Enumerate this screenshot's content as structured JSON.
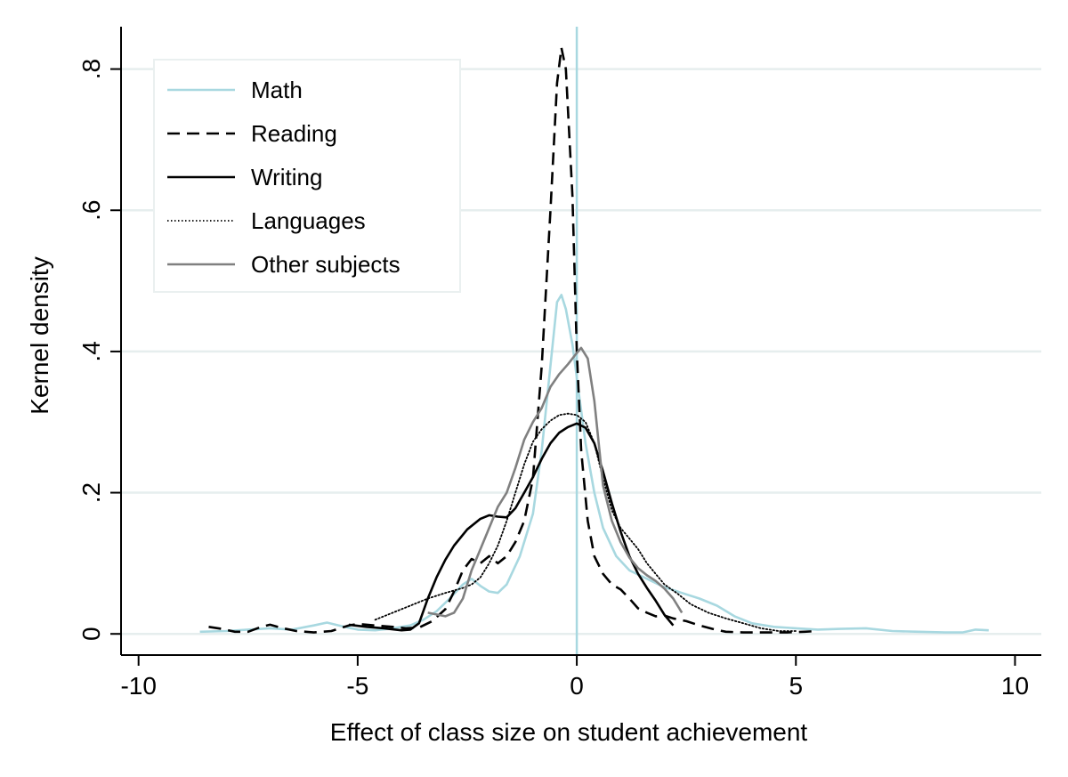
{
  "chart_data": {
    "type": "line",
    "title": "",
    "xlabel": "Effect of class size on student achievement",
    "ylabel": "Kernel density",
    "xlim": [
      -10.4,
      10.6
    ],
    "ylim": [
      -0.03,
      0.86
    ],
    "xticks": [
      {
        "value": -10,
        "label": "-10"
      },
      {
        "value": -5,
        "label": "-5"
      },
      {
        "value": 0,
        "label": "0"
      },
      {
        "value": 5,
        "label": "5"
      },
      {
        "value": 10,
        "label": "10"
      }
    ],
    "yticks": [
      {
        "value": 0,
        "label": "0"
      },
      {
        "value": 0.2,
        "label": ".2"
      },
      {
        "value": 0.4,
        "label": ".4"
      },
      {
        "value": 0.6,
        "label": ".6"
      },
      {
        "value": 0.8,
        "label": ".8"
      }
    ],
    "grid": "horizontal",
    "grid_color": "#e6eeee",
    "reference_line": {
      "x": 0,
      "color": "#a8d8e0"
    },
    "legend": {
      "position": "top-left"
    },
    "series": [
      {
        "name": "Math",
        "color": "#a8d8e0",
        "dash": "solid",
        "points": [
          [
            -8.6,
            0.003
          ],
          [
            -8.0,
            0.004
          ],
          [
            -7.5,
            0.006
          ],
          [
            -7.0,
            0.008
          ],
          [
            -6.5,
            0.006
          ],
          [
            -6.0,
            0.012
          ],
          [
            -5.7,
            0.016
          ],
          [
            -5.3,
            0.01
          ],
          [
            -5.0,
            0.006
          ],
          [
            -4.6,
            0.005
          ],
          [
            -4.2,
            0.008
          ],
          [
            -3.8,
            0.012
          ],
          [
            -3.5,
            0.02
          ],
          [
            -3.2,
            0.032
          ],
          [
            -2.9,
            0.05
          ],
          [
            -2.6,
            0.07
          ],
          [
            -2.4,
            0.078
          ],
          [
            -2.2,
            0.068
          ],
          [
            -2.0,
            0.06
          ],
          [
            -1.8,
            0.058
          ],
          [
            -1.6,
            0.07
          ],
          [
            -1.3,
            0.11
          ],
          [
            -1.0,
            0.17
          ],
          [
            -0.8,
            0.26
          ],
          [
            -0.6,
            0.38
          ],
          [
            -0.45,
            0.47
          ],
          [
            -0.35,
            0.48
          ],
          [
            -0.25,
            0.46
          ],
          [
            -0.1,
            0.41
          ],
          [
            0.05,
            0.34
          ],
          [
            0.2,
            0.27
          ],
          [
            0.4,
            0.2
          ],
          [
            0.6,
            0.15
          ],
          [
            0.9,
            0.11
          ],
          [
            1.2,
            0.09
          ],
          [
            1.6,
            0.078
          ],
          [
            2.0,
            0.066
          ],
          [
            2.4,
            0.058
          ],
          [
            2.8,
            0.05
          ],
          [
            3.2,
            0.04
          ],
          [
            3.6,
            0.025
          ],
          [
            4.0,
            0.015
          ],
          [
            4.5,
            0.01
          ],
          [
            5.0,
            0.008
          ],
          [
            5.5,
            0.006
          ],
          [
            6.0,
            0.007
          ],
          [
            6.6,
            0.008
          ],
          [
            7.2,
            0.004
          ],
          [
            7.8,
            0.003
          ],
          [
            8.4,
            0.002
          ],
          [
            8.8,
            0.002
          ],
          [
            9.1,
            0.006
          ],
          [
            9.4,
            0.005
          ]
        ]
      },
      {
        "name": "Reading",
        "color": "#000000",
        "dash": "dashed",
        "points": [
          [
            -8.4,
            0.01
          ],
          [
            -8.1,
            0.007
          ],
          [
            -7.8,
            0.003
          ],
          [
            -7.5,
            0.003
          ],
          [
            -7.2,
            0.01
          ],
          [
            -7.0,
            0.013
          ],
          [
            -6.7,
            0.008
          ],
          [
            -6.4,
            0.004
          ],
          [
            -6.0,
            0.002
          ],
          [
            -5.6,
            0.004
          ],
          [
            -5.2,
            0.012
          ],
          [
            -5.0,
            0.014
          ],
          [
            -4.6,
            0.012
          ],
          [
            -4.2,
            0.01
          ],
          [
            -3.9,
            0.008
          ],
          [
            -3.6,
            0.009
          ],
          [
            -3.3,
            0.018
          ],
          [
            -3.0,
            0.035
          ],
          [
            -2.8,
            0.06
          ],
          [
            -2.6,
            0.09
          ],
          [
            -2.4,
            0.106
          ],
          [
            -2.2,
            0.1
          ],
          [
            -2.0,
            0.11
          ],
          [
            -1.8,
            0.1
          ],
          [
            -1.6,
            0.11
          ],
          [
            -1.4,
            0.13
          ],
          [
            -1.2,
            0.16
          ],
          [
            -1.0,
            0.22
          ],
          [
            -0.8,
            0.38
          ],
          [
            -0.6,
            0.6
          ],
          [
            -0.45,
            0.78
          ],
          [
            -0.35,
            0.83
          ],
          [
            -0.25,
            0.8
          ],
          [
            -0.1,
            0.62
          ],
          [
            0.0,
            0.4
          ],
          [
            0.1,
            0.26
          ],
          [
            0.25,
            0.16
          ],
          [
            0.4,
            0.11
          ],
          [
            0.6,
            0.085
          ],
          [
            0.8,
            0.07
          ],
          [
            1.0,
            0.063
          ],
          [
            1.2,
            0.05
          ],
          [
            1.4,
            0.036
          ],
          [
            1.6,
            0.03
          ],
          [
            1.8,
            0.025
          ],
          [
            2.0,
            0.026
          ],
          [
            2.2,
            0.022
          ],
          [
            2.5,
            0.018
          ],
          [
            2.8,
            0.012
          ],
          [
            3.1,
            0.007
          ],
          [
            3.4,
            0.003
          ],
          [
            3.8,
            0.002
          ],
          [
            4.3,
            0.002
          ],
          [
            4.8,
            0.002
          ],
          [
            5.2,
            0.003
          ],
          [
            5.5,
            0.004
          ]
        ]
      },
      {
        "name": "Writing",
        "color": "#000000",
        "dash": "solid",
        "points": [
          [
            -5.2,
            0.013
          ],
          [
            -4.8,
            0.01
          ],
          [
            -4.4,
            0.008
          ],
          [
            -4.0,
            0.005
          ],
          [
            -3.8,
            0.006
          ],
          [
            -3.6,
            0.015
          ],
          [
            -3.4,
            0.05
          ],
          [
            -3.2,
            0.08
          ],
          [
            -3.0,
            0.105
          ],
          [
            -2.8,
            0.125
          ],
          [
            -2.5,
            0.148
          ],
          [
            -2.2,
            0.163
          ],
          [
            -2.0,
            0.168
          ],
          [
            -1.8,
            0.166
          ],
          [
            -1.6,
            0.165
          ],
          [
            -1.4,
            0.178
          ],
          [
            -1.2,
            0.2
          ],
          [
            -1.0,
            0.222
          ],
          [
            -0.8,
            0.248
          ],
          [
            -0.6,
            0.27
          ],
          [
            -0.4,
            0.285
          ],
          [
            -0.2,
            0.293
          ],
          [
            0.0,
            0.298
          ],
          [
            0.2,
            0.292
          ],
          [
            0.4,
            0.27
          ],
          [
            0.6,
            0.23
          ],
          [
            0.8,
            0.185
          ],
          [
            1.0,
            0.145
          ],
          [
            1.2,
            0.11
          ],
          [
            1.4,
            0.085
          ],
          [
            1.6,
            0.065
          ],
          [
            1.8,
            0.047
          ],
          [
            2.0,
            0.027
          ],
          [
            2.2,
            0.012
          ]
        ]
      },
      {
        "name": "Languages",
        "color": "#000000",
        "dash": "dotted",
        "points": [
          [
            -4.6,
            0.02
          ],
          [
            -4.2,
            0.03
          ],
          [
            -3.8,
            0.04
          ],
          [
            -3.4,
            0.05
          ],
          [
            -3.0,
            0.058
          ],
          [
            -2.6,
            0.065
          ],
          [
            -2.4,
            0.07
          ],
          [
            -2.2,
            0.08
          ],
          [
            -2.0,
            0.1
          ],
          [
            -1.8,
            0.125
          ],
          [
            -1.6,
            0.16
          ],
          [
            -1.4,
            0.2
          ],
          [
            -1.2,
            0.24
          ],
          [
            -1.0,
            0.272
          ],
          [
            -0.8,
            0.29
          ],
          [
            -0.6,
            0.302
          ],
          [
            -0.4,
            0.31
          ],
          [
            -0.2,
            0.312
          ],
          [
            0.0,
            0.31
          ],
          [
            0.2,
            0.3
          ],
          [
            0.4,
            0.27
          ],
          [
            0.6,
            0.22
          ],
          [
            0.8,
            0.175
          ],
          [
            1.0,
            0.15
          ],
          [
            1.2,
            0.135
          ],
          [
            1.4,
            0.12
          ],
          [
            1.6,
            0.1
          ],
          [
            1.8,
            0.085
          ],
          [
            2.0,
            0.07
          ],
          [
            2.3,
            0.057
          ],
          [
            2.6,
            0.042
          ],
          [
            3.0,
            0.03
          ],
          [
            3.4,
            0.022
          ],
          [
            3.8,
            0.015
          ],
          [
            4.2,
            0.008
          ],
          [
            4.6,
            0.004
          ],
          [
            5.0,
            0.004
          ]
        ]
      },
      {
        "name": "Other subjects",
        "color": "#808080",
        "dash": "solid",
        "points": [
          [
            -3.4,
            0.03
          ],
          [
            -3.0,
            0.025
          ],
          [
            -2.8,
            0.03
          ],
          [
            -2.6,
            0.05
          ],
          [
            -2.4,
            0.09
          ],
          [
            -2.2,
            0.12
          ],
          [
            -2.0,
            0.15
          ],
          [
            -1.8,
            0.18
          ],
          [
            -1.6,
            0.2
          ],
          [
            -1.4,
            0.235
          ],
          [
            -1.2,
            0.275
          ],
          [
            -1.0,
            0.3
          ],
          [
            -0.8,
            0.32
          ],
          [
            -0.6,
            0.35
          ],
          [
            -0.4,
            0.368
          ],
          [
            -0.2,
            0.382
          ],
          [
            0.0,
            0.398
          ],
          [
            0.1,
            0.405
          ],
          [
            0.25,
            0.39
          ],
          [
            0.4,
            0.33
          ],
          [
            0.5,
            0.27
          ],
          [
            0.6,
            0.21
          ],
          [
            0.8,
            0.16
          ],
          [
            1.0,
            0.13
          ],
          [
            1.2,
            0.108
          ],
          [
            1.4,
            0.093
          ],
          [
            1.6,
            0.083
          ],
          [
            1.8,
            0.075
          ],
          [
            2.0,
            0.064
          ],
          [
            2.2,
            0.05
          ],
          [
            2.4,
            0.03
          ]
        ]
      }
    ]
  }
}
